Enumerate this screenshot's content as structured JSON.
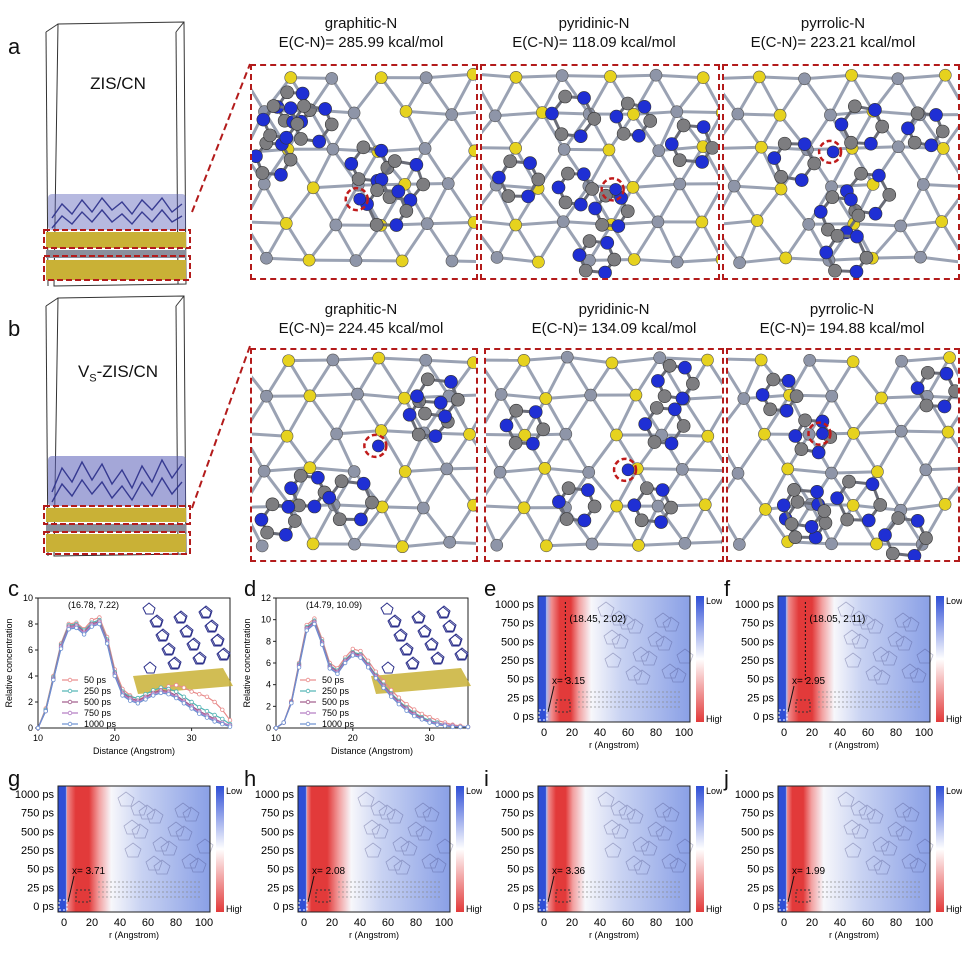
{
  "panel_letters": {
    "a": "a",
    "b": "b",
    "c": "c",
    "d": "d",
    "e": "e",
    "f": "f",
    "g": "g",
    "h": "h",
    "i": "i",
    "j": "j"
  },
  "row_a": {
    "cell_label": "ZIS/CN",
    "boxes": [
      {
        "name": "graphitic-N",
        "energy": "E(C-N)= 285.99 kcal/mol"
      },
      {
        "name": "pyridinic-N",
        "energy": "E(C-N)= 118.09 kcal/mol"
      },
      {
        "name": "pyrrolic-N",
        "energy": "E(C-N)= 223.21 kcal/mol"
      }
    ]
  },
  "row_b": {
    "cell_label_main": "V",
    "cell_label_sub": "S",
    "cell_label_rest": "-ZIS/CN",
    "boxes": [
      {
        "name": "graphitic-N",
        "energy": "E(C-N)= 224.45 kcal/mol"
      },
      {
        "name": "pyridinic-N",
        "energy": "E(C-N)= 134.09 kcal/mol"
      },
      {
        "name": "pyrrolic-N",
        "energy": "E(C-N)= 194.88 kcal/mol"
      }
    ]
  },
  "heatmap_common": {
    "y_ticks": [
      "1000 ps",
      "750 ps",
      "500 ps",
      "250 ps",
      "50 ps",
      "25 ps",
      "0 ps"
    ],
    "x_ticks": [
      "0",
      "20",
      "40",
      "60",
      "80",
      "100"
    ],
    "x_title": "r (Angstrom)",
    "low": "Low",
    "high": "High"
  },
  "heatmaps": {
    "e": {
      "peak": "(18.45, 2.02)",
      "x": "x= 3.15"
    },
    "f": {
      "peak": "(18.05, 2.11)",
      "x": "x= 2.95"
    },
    "g": {
      "x": "x= 3.71"
    },
    "h": {
      "x": "x= 2.08"
    },
    "i": {
      "x": "x= 3.36"
    },
    "j": {
      "x": "x= 1.99"
    }
  },
  "colors": {
    "red": "#e23a3a",
    "blue": "#2f4fd6",
    "white": "#ffffff",
    "dash": "#b31b1b"
  },
  "chart_data": [
    {
      "type": "line",
      "panel": "c",
      "annotation": "(16.78, 7.22)",
      "xlabel": "Distance (Angstrom)",
      "ylabel": "Relative concentration",
      "xlim": [
        10,
        35
      ],
      "ylim": [
        0,
        10
      ],
      "x_ticks": [
        10,
        20,
        30
      ],
      "y_ticks": [
        0,
        2,
        4,
        6,
        8,
        10
      ],
      "x": [
        10,
        11,
        12,
        13,
        14,
        15,
        16,
        17,
        18,
        19,
        20,
        21,
        22,
        23,
        24,
        25,
        26,
        27,
        28,
        29,
        30,
        31,
        32,
        33,
        34,
        35
      ],
      "series": [
        {
          "name": "50 ps",
          "color": "#e88a8a",
          "values": [
            0,
            1.5,
            4,
            6.5,
            8,
            8.1,
            7.6,
            8.3,
            8.5,
            7,
            4.5,
            3,
            2.5,
            2.2,
            2.4,
            2.7,
            3,
            3.2,
            3.3,
            3.1,
            2.8,
            2.6,
            2.4,
            2,
            1.4,
            0.6
          ]
        },
        {
          "name": "250 ps",
          "color": "#4fb3b3",
          "values": [
            0,
            1.4,
            3.9,
            6.4,
            7.9,
            8,
            7.5,
            8.1,
            8.3,
            6.8,
            4.3,
            2.8,
            2.4,
            2.3,
            2.6,
            2.9,
            3.1,
            3,
            2.8,
            2.4,
            2,
            1.6,
            1.3,
            1,
            0.7,
            0.3
          ]
        },
        {
          "name": "500 ps",
          "color": "#a05a8a",
          "values": [
            0,
            1.3,
            3.8,
            6.3,
            7.8,
            7.9,
            7.4,
            8,
            8.2,
            6.7,
            4.2,
            2.7,
            2.3,
            2.1,
            2.4,
            2.7,
            2.9,
            2.8,
            2.5,
            2.1,
            1.7,
            1.3,
            1,
            0.7,
            0.4,
            0.2
          ]
        },
        {
          "name": "750 ps",
          "color": "#b27ac2",
          "values": [
            0,
            1.3,
            3.7,
            6.2,
            7.7,
            7.8,
            7.3,
            7.9,
            8.1,
            6.6,
            4.1,
            2.6,
            2.2,
            2,
            2.3,
            2.6,
            2.8,
            2.7,
            2.4,
            2,
            1.6,
            1.2,
            0.9,
            0.6,
            0.4,
            0.2
          ]
        },
        {
          "name": "1000 ps",
          "color": "#6a8fd0",
          "values": [
            0,
            1.3,
            3.7,
            6.1,
            7.6,
            7.7,
            7.2,
            7.8,
            8,
            6.5,
            4,
            2.5,
            2.1,
            1.9,
            2.2,
            2.5,
            2.7,
            2.6,
            2.3,
            1.9,
            1.5,
            1.1,
            0.8,
            0.5,
            0.3,
            0.1
          ]
        }
      ]
    },
    {
      "type": "line",
      "panel": "d",
      "annotation": "(14.79, 10.09)",
      "xlabel": "Distance (Angstrom)",
      "ylabel": "Relative concentration",
      "xlim": [
        10,
        35
      ],
      "ylim": [
        0,
        12
      ],
      "x_ticks": [
        10,
        20,
        30
      ],
      "y_ticks": [
        0,
        2,
        4,
        6,
        8,
        10,
        12
      ],
      "x": [
        10,
        11,
        12,
        13,
        14,
        15,
        16,
        17,
        18,
        19,
        20,
        21,
        22,
        23,
        24,
        25,
        26,
        27,
        28,
        29,
        30,
        31,
        32,
        33,
        34,
        35
      ],
      "series": [
        {
          "name": "50 ps",
          "color": "#e88a8a",
          "values": [
            0,
            0.5,
            2.5,
            6,
            9.5,
            10.1,
            8.2,
            6,
            5.5,
            6.5,
            7.3,
            7.1,
            6.2,
            5.2,
            4.3,
            3.5,
            2.8,
            2.2,
            1.7,
            1.3,
            1,
            0.7,
            0.5,
            0.3,
            0.2,
            0.1
          ]
        },
        {
          "name": "250 ps",
          "color": "#4fb3b3",
          "values": [
            0,
            0.5,
            2.4,
            5.9,
            9.3,
            9.9,
            8,
            5.8,
            5.3,
            6.3,
            7,
            6.8,
            5.9,
            4.9,
            4,
            3.2,
            2.5,
            1.9,
            1.4,
            1,
            0.7,
            0.5,
            0.3,
            0.2,
            0.1,
            0.1
          ]
        },
        {
          "name": "500 ps",
          "color": "#a05a8a",
          "values": [
            0,
            0.5,
            2.4,
            5.8,
            9.2,
            9.8,
            7.9,
            5.7,
            5.2,
            6.2,
            6.9,
            6.7,
            5.8,
            4.8,
            3.9,
            3.1,
            2.4,
            1.8,
            1.3,
            0.9,
            0.6,
            0.4,
            0.3,
            0.2,
            0.1,
            0.1
          ]
        },
        {
          "name": "750 ps",
          "color": "#b27ac2",
          "values": [
            0,
            0.5,
            2.3,
            5.7,
            9.1,
            9.7,
            7.8,
            5.6,
            5.1,
            6.1,
            6.8,
            6.6,
            5.7,
            4.7,
            3.8,
            3,
            2.3,
            1.7,
            1.2,
            0.8,
            0.6,
            0.4,
            0.3,
            0.2,
            0.1,
            0.1
          ]
        },
        {
          "name": "1000 ps",
          "color": "#6a8fd0",
          "values": [
            0,
            0.5,
            2.3,
            5.6,
            9,
            9.6,
            7.7,
            5.5,
            5,
            6,
            6.7,
            6.5,
            5.6,
            4.6,
            3.7,
            2.9,
            2.2,
            1.6,
            1.1,
            0.8,
            0.5,
            0.3,
            0.2,
            0.1,
            0.1,
            0.1
          ]
        }
      ]
    }
  ]
}
